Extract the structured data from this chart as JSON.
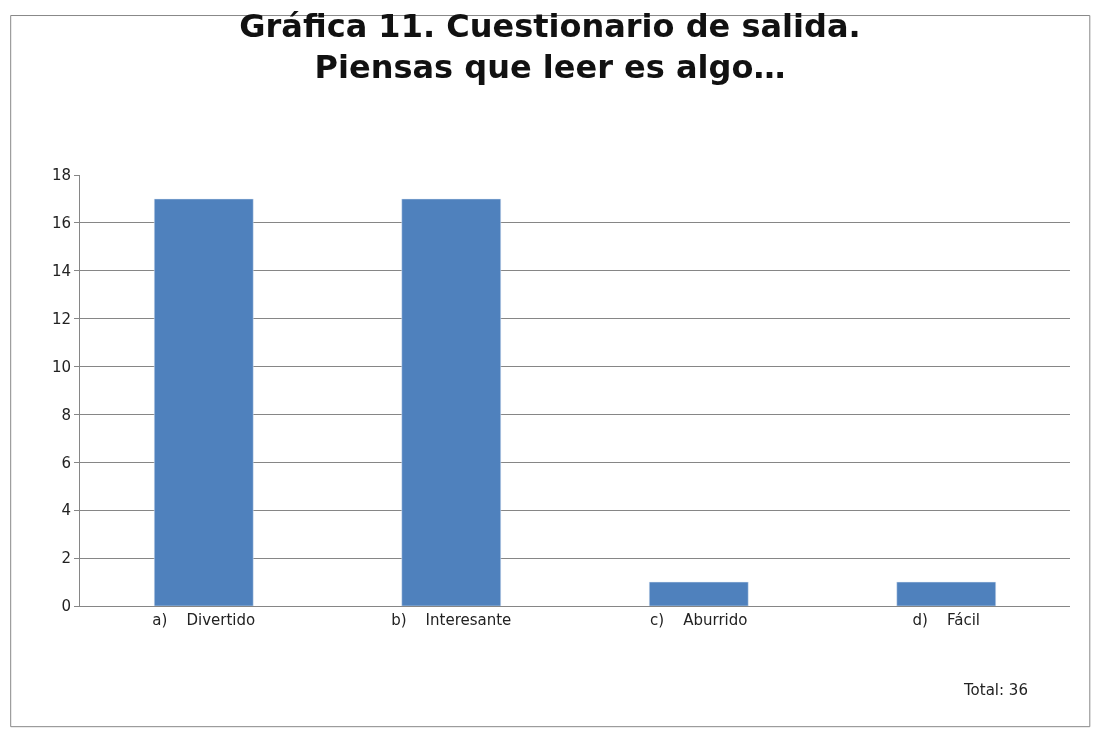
{
  "chart_data": {
    "type": "bar",
    "title": "Gráfica 11. Cuestionario de salida. Piensas que leer es algo…",
    "categories": [
      "a)    Divertido",
      "b)    Interesante",
      "c)    Aburrido",
      "d)    Fácil"
    ],
    "values": [
      17,
      17,
      1,
      1
    ],
    "color": "#4f81bd",
    "ylim": [
      0,
      18
    ],
    "yticks": [
      0,
      2,
      4,
      6,
      8,
      10,
      12,
      14,
      16,
      18
    ],
    "grid": "y",
    "legend": false,
    "annotations": [
      "Total: 36"
    ]
  }
}
